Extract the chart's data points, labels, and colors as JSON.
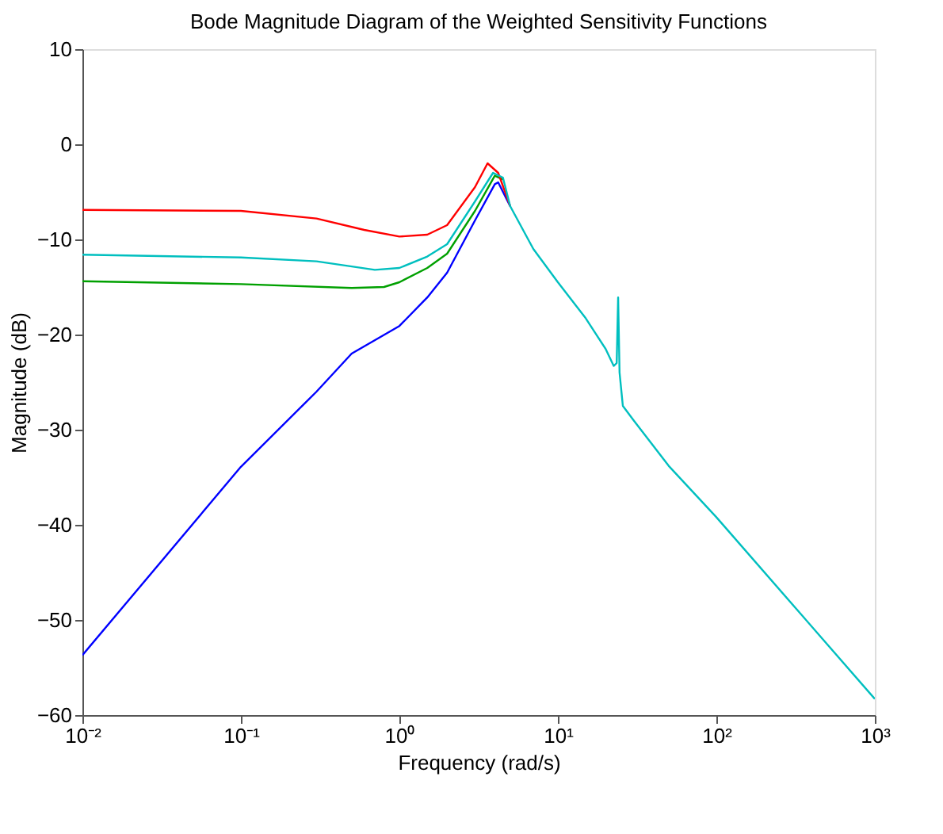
{
  "chart_data": {
    "type": "line",
    "title": "Bode Magnitude Diagram of the Weighted Sensitivity Functions",
    "xlabel": "Frequency  (rad/s)",
    "ylabel": "Magnitude (dB)",
    "log": "x",
    "grid": false,
    "marker": "none",
    "line_style": "solid",
    "xlim": [
      0.01,
      1000
    ],
    "ylim": [
      -60,
      10
    ],
    "xticks": [
      {
        "value": 0.01,
        "label": "10⁻²"
      },
      {
        "value": 0.1,
        "label": "10⁻¹"
      },
      {
        "value": 1,
        "label": "10⁰"
      },
      {
        "value": 10,
        "label": "10¹"
      },
      {
        "value": 100,
        "label": "10²"
      },
      {
        "value": 1000,
        "label": "10³"
      }
    ],
    "yticks": [
      -60,
      -50,
      -40,
      -30,
      -20,
      -10,
      0,
      10
    ],
    "series": [
      {
        "color": "#0000ff",
        "x": [
          0.01,
          0.1,
          0.3,
          0.5,
          1,
          1.5,
          2,
          3,
          4,
          4.2,
          5
        ],
        "values": [
          -53.7,
          -33.9,
          -26,
          -22,
          -19.1,
          -16.1,
          -13.5,
          -8,
          -4.2,
          -4,
          -6.5
        ]
      },
      {
        "color": "#00a000",
        "x": [
          0.01,
          0.1,
          0.5,
          0.8,
          1,
          1.5,
          2,
          3,
          4,
          4.5
        ],
        "values": [
          -14.4,
          -14.7,
          -15.1,
          -15,
          -14.5,
          -13,
          -11.5,
          -7,
          -3.3,
          -3.7
        ]
      },
      {
        "color": "#ff0000",
        "x": [
          0.01,
          0.1,
          0.3,
          0.6,
          1,
          1.5,
          2,
          3,
          3.6,
          4.2,
          5
        ],
        "values": [
          -6.9,
          -7,
          -7.8,
          -9,
          -9.7,
          -9.5,
          -8.5,
          -4.5,
          -2,
          -3,
          -6.5
        ]
      },
      {
        "color": "#00bfbf",
        "x": [
          0.01,
          0.1,
          0.3,
          0.7,
          1,
          1.5,
          2,
          3,
          3.9,
          4.5,
          5,
          7,
          10,
          15,
          20,
          22.5,
          23.5,
          24,
          24.5,
          25.7,
          30,
          50,
          100,
          1000
        ],
        "values": [
          -11.6,
          -11.9,
          -12.3,
          -13.2,
          -13,
          -11.8,
          -10.5,
          -6,
          -3,
          -3.5,
          -6.5,
          -11,
          -14.5,
          -18.3,
          -21.5,
          -23.3,
          -23,
          -16.1,
          -24,
          -27.5,
          -29,
          -33.8,
          -39.2,
          -58.3
        ]
      }
    ]
  }
}
